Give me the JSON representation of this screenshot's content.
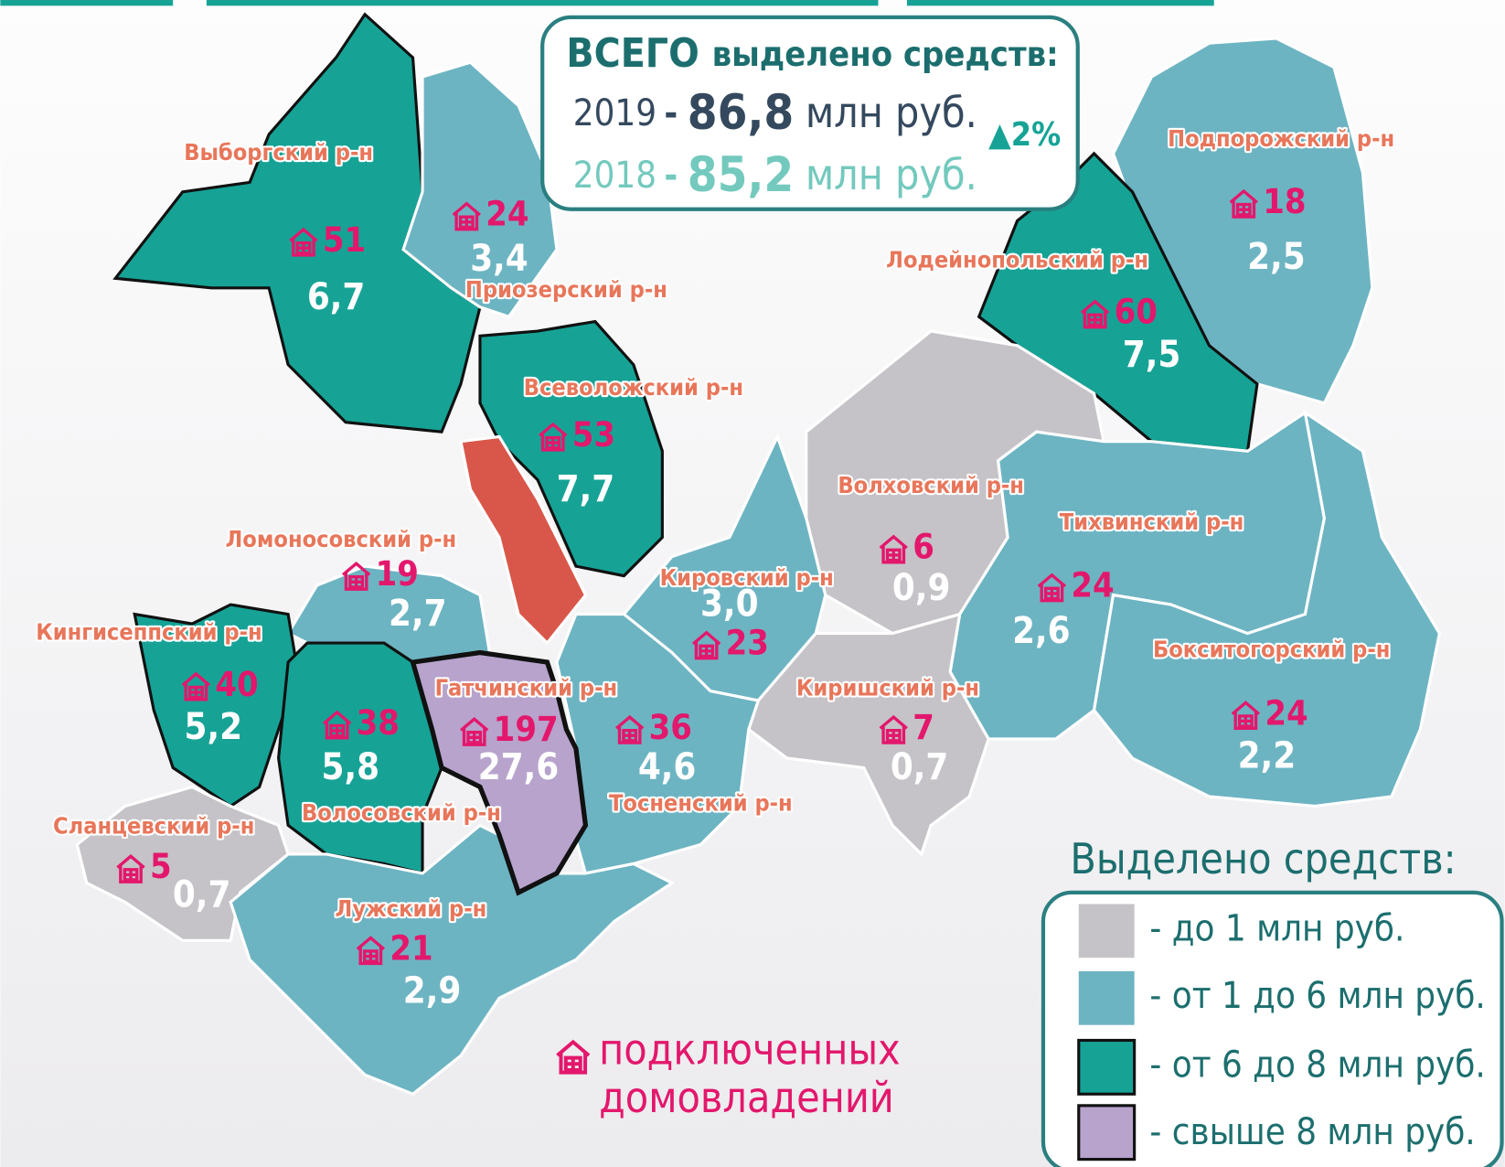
{
  "summary": {
    "title_bold": "ВСЕГО",
    "title_rest": "выделено средств:",
    "rows": [
      {
        "year": "2019",
        "dash": "-",
        "amount": "86,8",
        "unit": "млн руб."
      },
      {
        "year": "2018",
        "dash": "-",
        "amount": "85,2",
        "unit": "млн руб."
      }
    ],
    "change": "▲2%"
  },
  "districts": [
    {
      "name": "Выборгский р-н",
      "homes": "51",
      "funds": "6,7"
    },
    {
      "name": "Приозерский р-н",
      "homes": "24",
      "funds": "3,4"
    },
    {
      "name": "Всеволожский р-н",
      "homes": "53",
      "funds": "7,7"
    },
    {
      "name": "Подпорожский р-н",
      "homes": "18",
      "funds": "2,5"
    },
    {
      "name": "Лодейнопольский р-н",
      "homes": "60",
      "funds": "7,5"
    },
    {
      "name": "Волховский р-н",
      "homes": "6",
      "funds": "0,9"
    },
    {
      "name": "Тихвинский р-н",
      "homes": "24",
      "funds": "2,6"
    },
    {
      "name": "Кировский р-н",
      "homes": "23",
      "funds": "3,0"
    },
    {
      "name": "Ломоносовский р-н",
      "homes": "19",
      "funds": "2,7"
    },
    {
      "name": "Кингисеппский р-н",
      "homes": "40",
      "funds": "5,2"
    },
    {
      "name": "Волосовский р-н",
      "homes": "38",
      "funds": "5,8"
    },
    {
      "name": "Гатчинский р-н",
      "homes": "197",
      "funds": "27,6"
    },
    {
      "name": "Тосненский р-н",
      "homes": "36",
      "funds": "4,6"
    },
    {
      "name": "Киришский р-н",
      "homes": "7",
      "funds": "0,7"
    },
    {
      "name": "Бокситогорский р-н",
      "homes": "24",
      "funds": "2,2"
    },
    {
      "name": "Сланцевский р-н",
      "homes": "5",
      "funds": "0,7"
    },
    {
      "name": "Лужский р-н",
      "homes": "21",
      "funds": "2,9"
    }
  ],
  "legend": {
    "title": "Выделено средств:",
    "items": [
      "- до 1 млн руб.",
      "- от 1 до 6 млн руб.",
      "- от 6 до 8 млн руб.",
      "- свыше 8 млн руб."
    ]
  },
  "homes_note": {
    "line1": "подключенных",
    "line2": "домовладений"
  }
}
